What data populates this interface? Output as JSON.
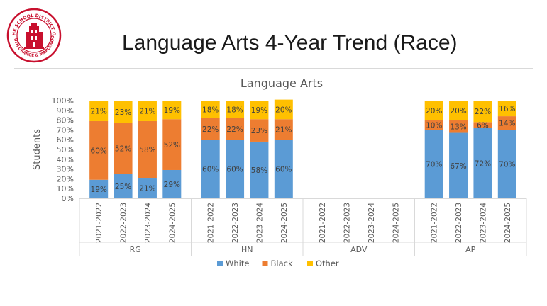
{
  "slide": {
    "title": "Language Arts 4-Year Trend (Race)",
    "logo": {
      "arc_text": "THE SCHOOL DISTRICT OF",
      "arc_text_bottom": "SOUTH ORANGE & MAPLEWOOD",
      "color": "#c8102e"
    }
  },
  "chart_data": {
    "type": "bar",
    "stacked": true,
    "title": "Language Arts",
    "ylabel": "Students",
    "ylim": [
      0,
      100
    ],
    "yticks": [
      "0%",
      "10%",
      "20%",
      "30%",
      "40%",
      "50%",
      "60%",
      "70%",
      "80%",
      "90%",
      "100%"
    ],
    "groups": [
      {
        "name": "RG",
        "categories": [
          "2021-2022",
          "2022-2023",
          "2023-2024",
          "2024-2025"
        ]
      },
      {
        "name": "HN",
        "categories": [
          "2021-2022",
          "2022-2023",
          "2023-2024",
          "2024-2025"
        ]
      },
      {
        "name": "ADV",
        "categories": [
          "2021-2022",
          "2022-2023",
          "2023-2024",
          "2024-2025"
        ]
      },
      {
        "name": "AP",
        "categories": [
          "2021-2022",
          "2022-2023",
          "2023-2024",
          "2024-2025"
        ]
      }
    ],
    "series": [
      {
        "name": "White",
        "color": "#5b9bd5",
        "values": [
          [
            19,
            25,
            21,
            29
          ],
          [
            60,
            60,
            58,
            60
          ],
          [
            null,
            null,
            null,
            null
          ],
          [
            70,
            67,
            72,
            70
          ]
        ]
      },
      {
        "name": "Black",
        "color": "#ed7d31",
        "values": [
          [
            60,
            52,
            58,
            52
          ],
          [
            22,
            22,
            23,
            21
          ],
          [
            null,
            null,
            null,
            null
          ],
          [
            10,
            13,
            6,
            14
          ]
        ]
      },
      {
        "name": "Other",
        "color": "#ffc000",
        "values": [
          [
            21,
            23,
            21,
            19
          ],
          [
            18,
            18,
            19,
            20
          ],
          [
            null,
            null,
            null,
            null
          ],
          [
            20,
            20,
            22,
            16
          ]
        ]
      }
    ],
    "legend_position": "bottom",
    "grid": false
  }
}
